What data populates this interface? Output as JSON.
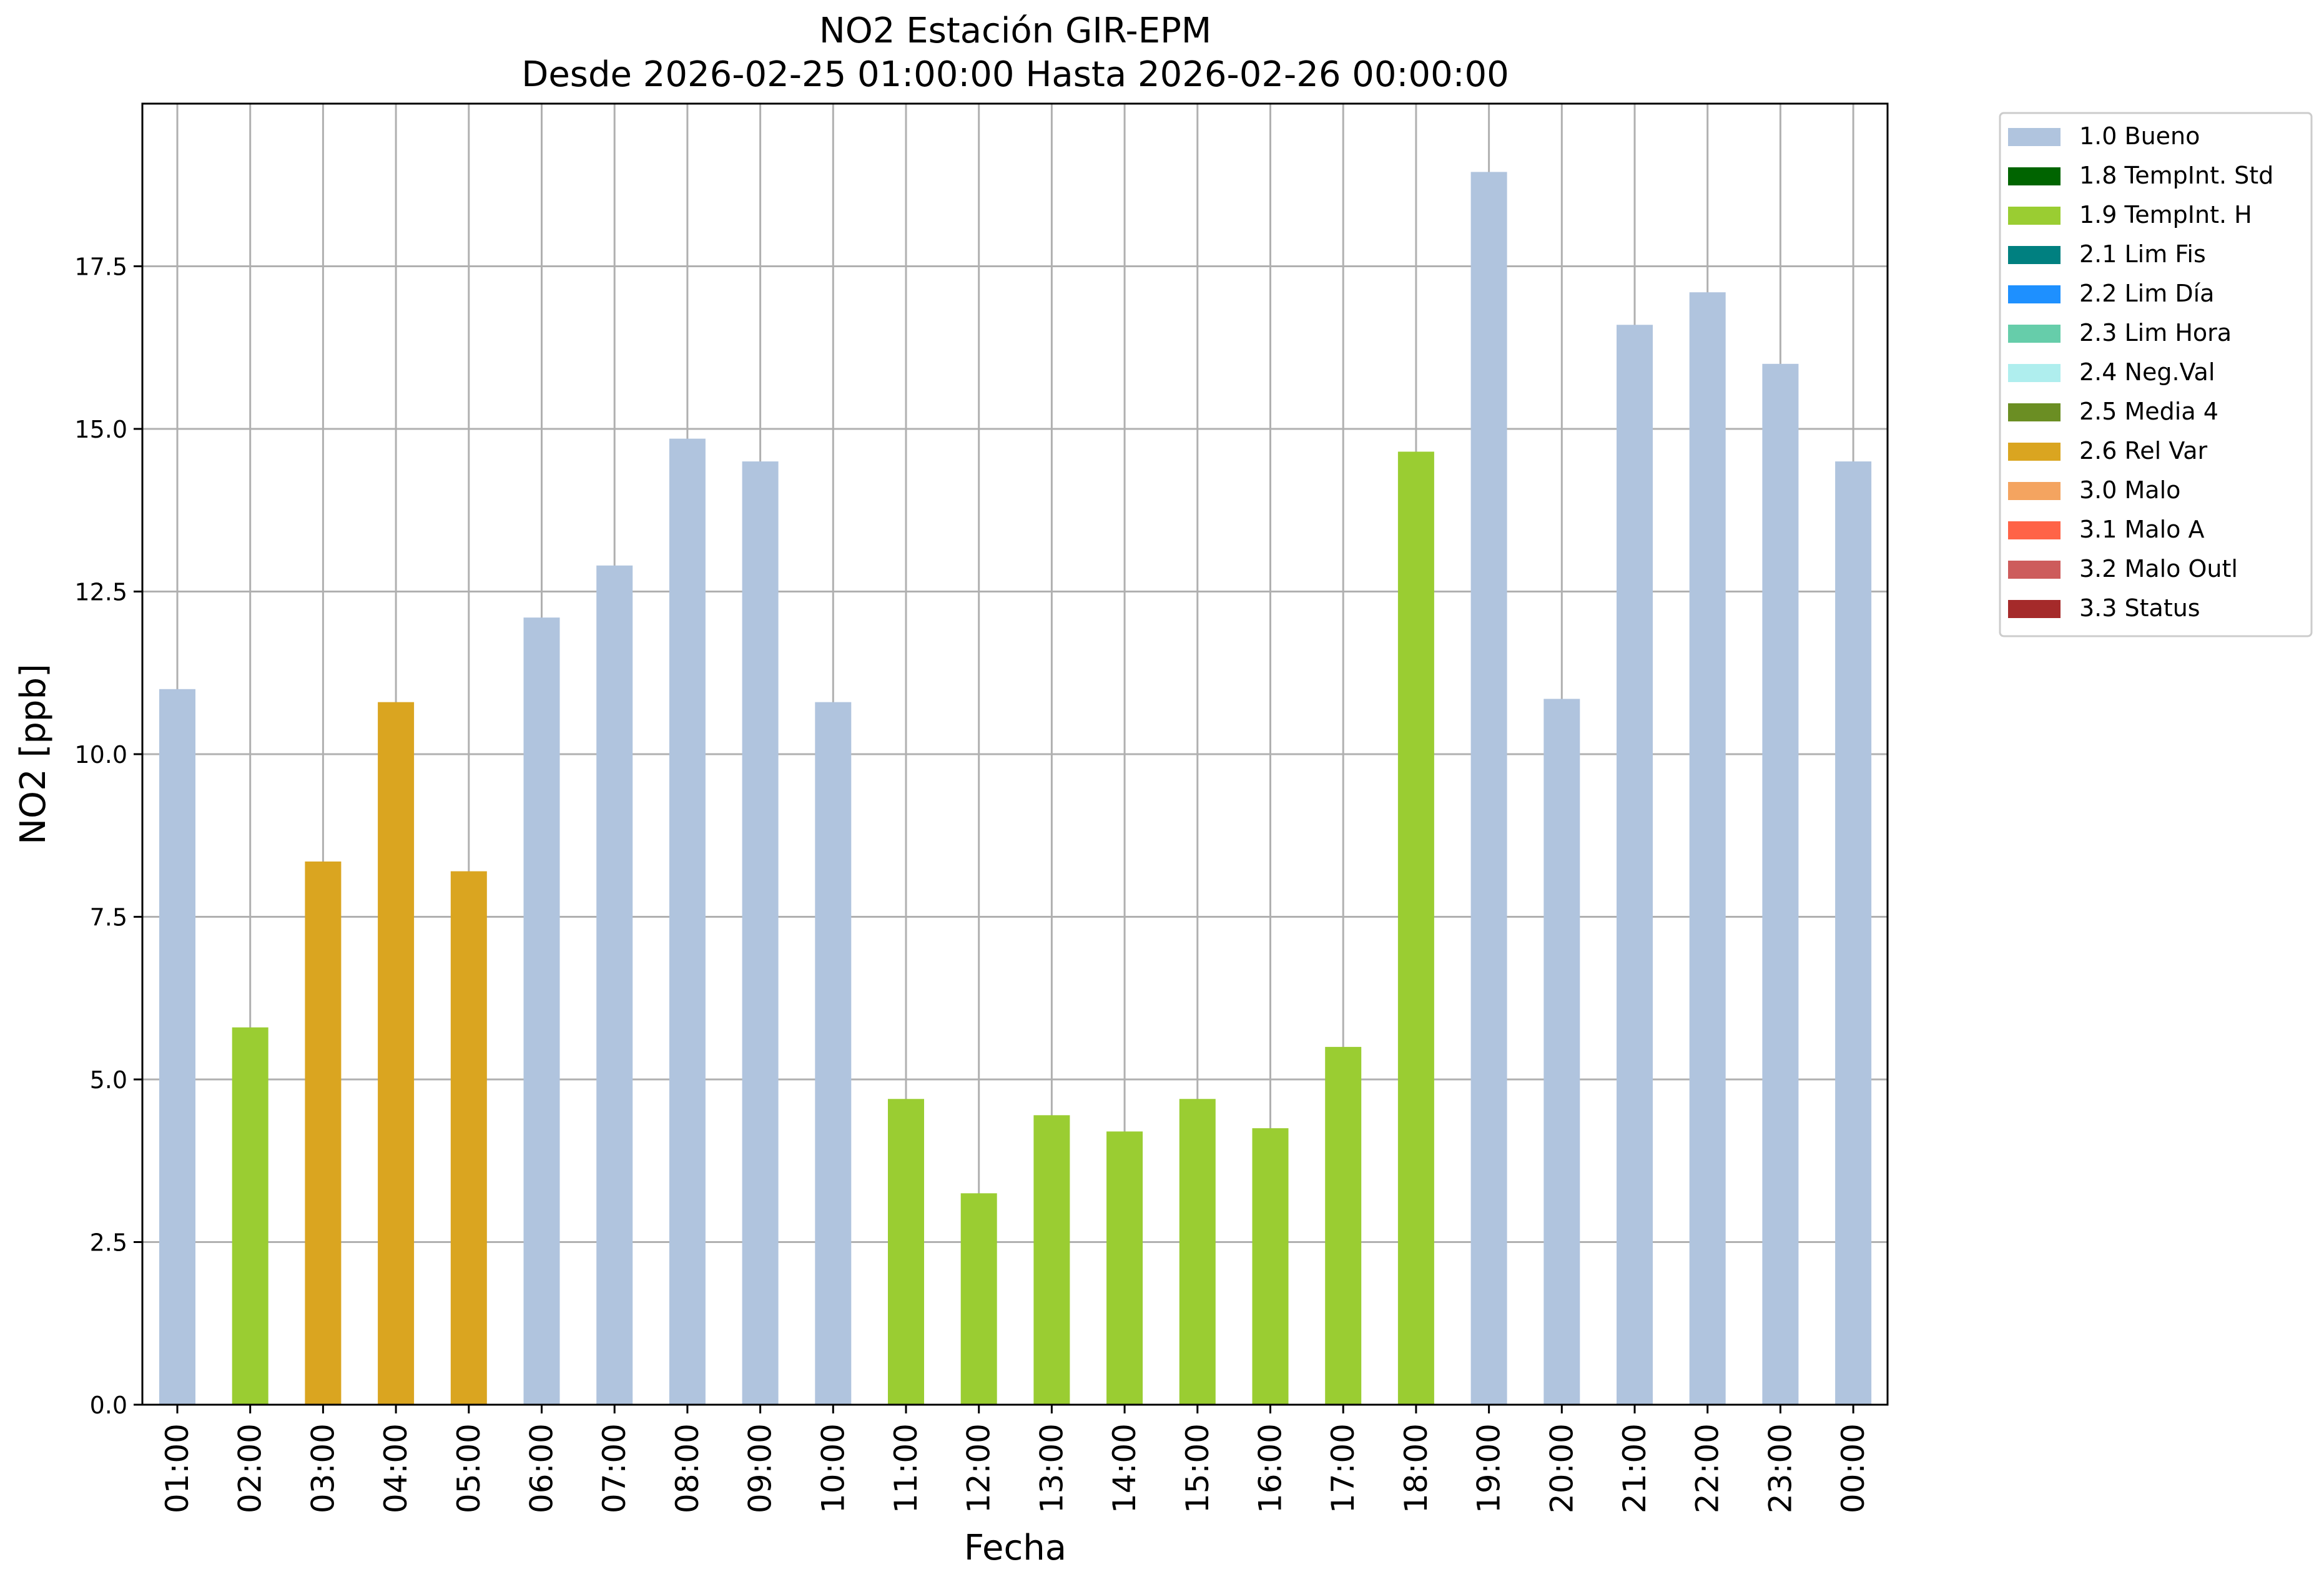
{
  "chart_data": {
    "type": "bar",
    "title_line1": "NO2 Estación GIR-EPM",
    "title_line2": "Desde 2026-02-25 01:00:00 Hasta 2026-02-26 00:00:00",
    "xlabel": "Fecha",
    "ylabel": "NO2 [ppb]",
    "ylim": [
      0,
      20
    ],
    "yticks": [
      "0.0",
      "2.5",
      "5.0",
      "7.5",
      "10.0",
      "12.5",
      "15.0",
      "17.5"
    ],
    "grid": true,
    "legend_position": "outside-top-right",
    "categories": [
      "01:00",
      "02:00",
      "03:00",
      "04:00",
      "05:00",
      "06:00",
      "07:00",
      "08:00",
      "09:00",
      "10:00",
      "11:00",
      "12:00",
      "13:00",
      "14:00",
      "15:00",
      "16:00",
      "17:00",
      "18:00",
      "19:00",
      "20:00",
      "21:00",
      "22:00",
      "23:00",
      "00:00"
    ],
    "values": [
      11.0,
      5.8,
      8.35,
      10.8,
      8.2,
      12.1,
      12.9,
      14.85,
      14.5,
      10.8,
      4.7,
      3.25,
      4.45,
      4.2,
      4.7,
      4.25,
      5.5,
      14.65,
      18.95,
      10.85,
      16.6,
      17.1,
      16.0,
      14.5
    ],
    "flags": [
      "1.0 Bueno",
      "1.9 TempInt. H",
      "2.6 Rel Var",
      "2.6 Rel Var",
      "2.6 Rel Var",
      "1.0 Bueno",
      "1.0 Bueno",
      "1.0 Bueno",
      "1.0 Bueno",
      "1.0 Bueno",
      "1.9 TempInt. H",
      "1.9 TempInt. H",
      "1.9 TempInt. H",
      "1.9 TempInt. H",
      "1.9 TempInt. H",
      "1.9 TempInt. H",
      "1.9 TempInt. H",
      "1.9 TempInt. H",
      "1.0 Bueno",
      "1.0 Bueno",
      "1.0 Bueno",
      "1.0 Bueno",
      "1.0 Bueno",
      "1.0 Bueno"
    ],
    "legend": [
      {
        "label": "1.0 Bueno",
        "color": "#b0c4de"
      },
      {
        "label": "1.8 TempInt. Std",
        "color": "#006400"
      },
      {
        "label": "1.9 TempInt. H",
        "color": "#9acd32"
      },
      {
        "label": "2.1 Lim Fis",
        "color": "#008080"
      },
      {
        "label": "2.2 Lim Día",
        "color": "#1e90ff"
      },
      {
        "label": "2.3 Lim Hora",
        "color": "#66cdaa"
      },
      {
        "label": "2.4 Neg.Val",
        "color": "#afeeee"
      },
      {
        "label": "2.5 Media 4",
        "color": "#6b8e23"
      },
      {
        "label": "2.6 Rel Var",
        "color": "#daa520"
      },
      {
        "label": "3.0 Malo",
        "color": "#f4a460"
      },
      {
        "label": "3.1 Malo A",
        "color": "#ff6347"
      },
      {
        "label": "3.2 Malo Outl",
        "color": "#cd5c5c"
      },
      {
        "label": "3.3 Status",
        "color": "#a52a2a"
      }
    ]
  }
}
